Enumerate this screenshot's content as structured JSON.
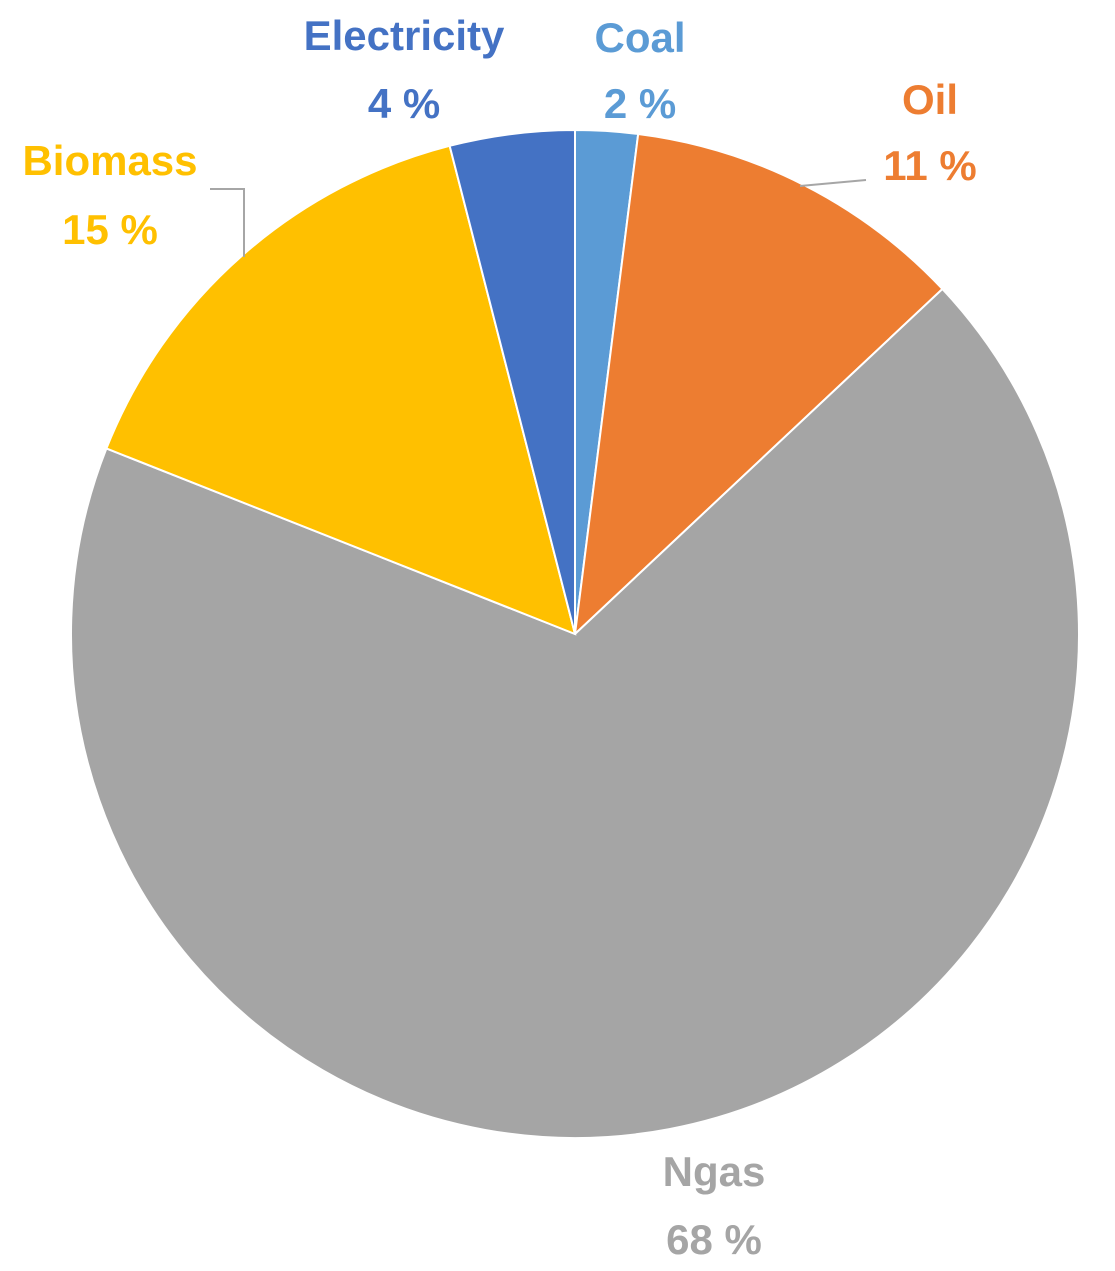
{
  "chart_data": {
    "type": "pie",
    "title": "",
    "slices": [
      {
        "label": "Coal",
        "value": 2,
        "value_text": "2 %",
        "color": "#5b9bd5"
      },
      {
        "label": "Oil",
        "value": 11,
        "value_text": "11 %",
        "color": "#ed7d31"
      },
      {
        "label": "Ngas",
        "value": 68,
        "value_text": "68 %",
        "color": "#a5a5a5"
      },
      {
        "label": "Biomass",
        "value": 15,
        "value_text": "15 %",
        "color": "#ffc000"
      },
      {
        "label": "Electricity",
        "value": 4,
        "value_text": "4 %",
        "color": "#4472c4"
      }
    ],
    "start_angle": "12 o'clock",
    "direction": "clockwise",
    "legend": "none"
  }
}
